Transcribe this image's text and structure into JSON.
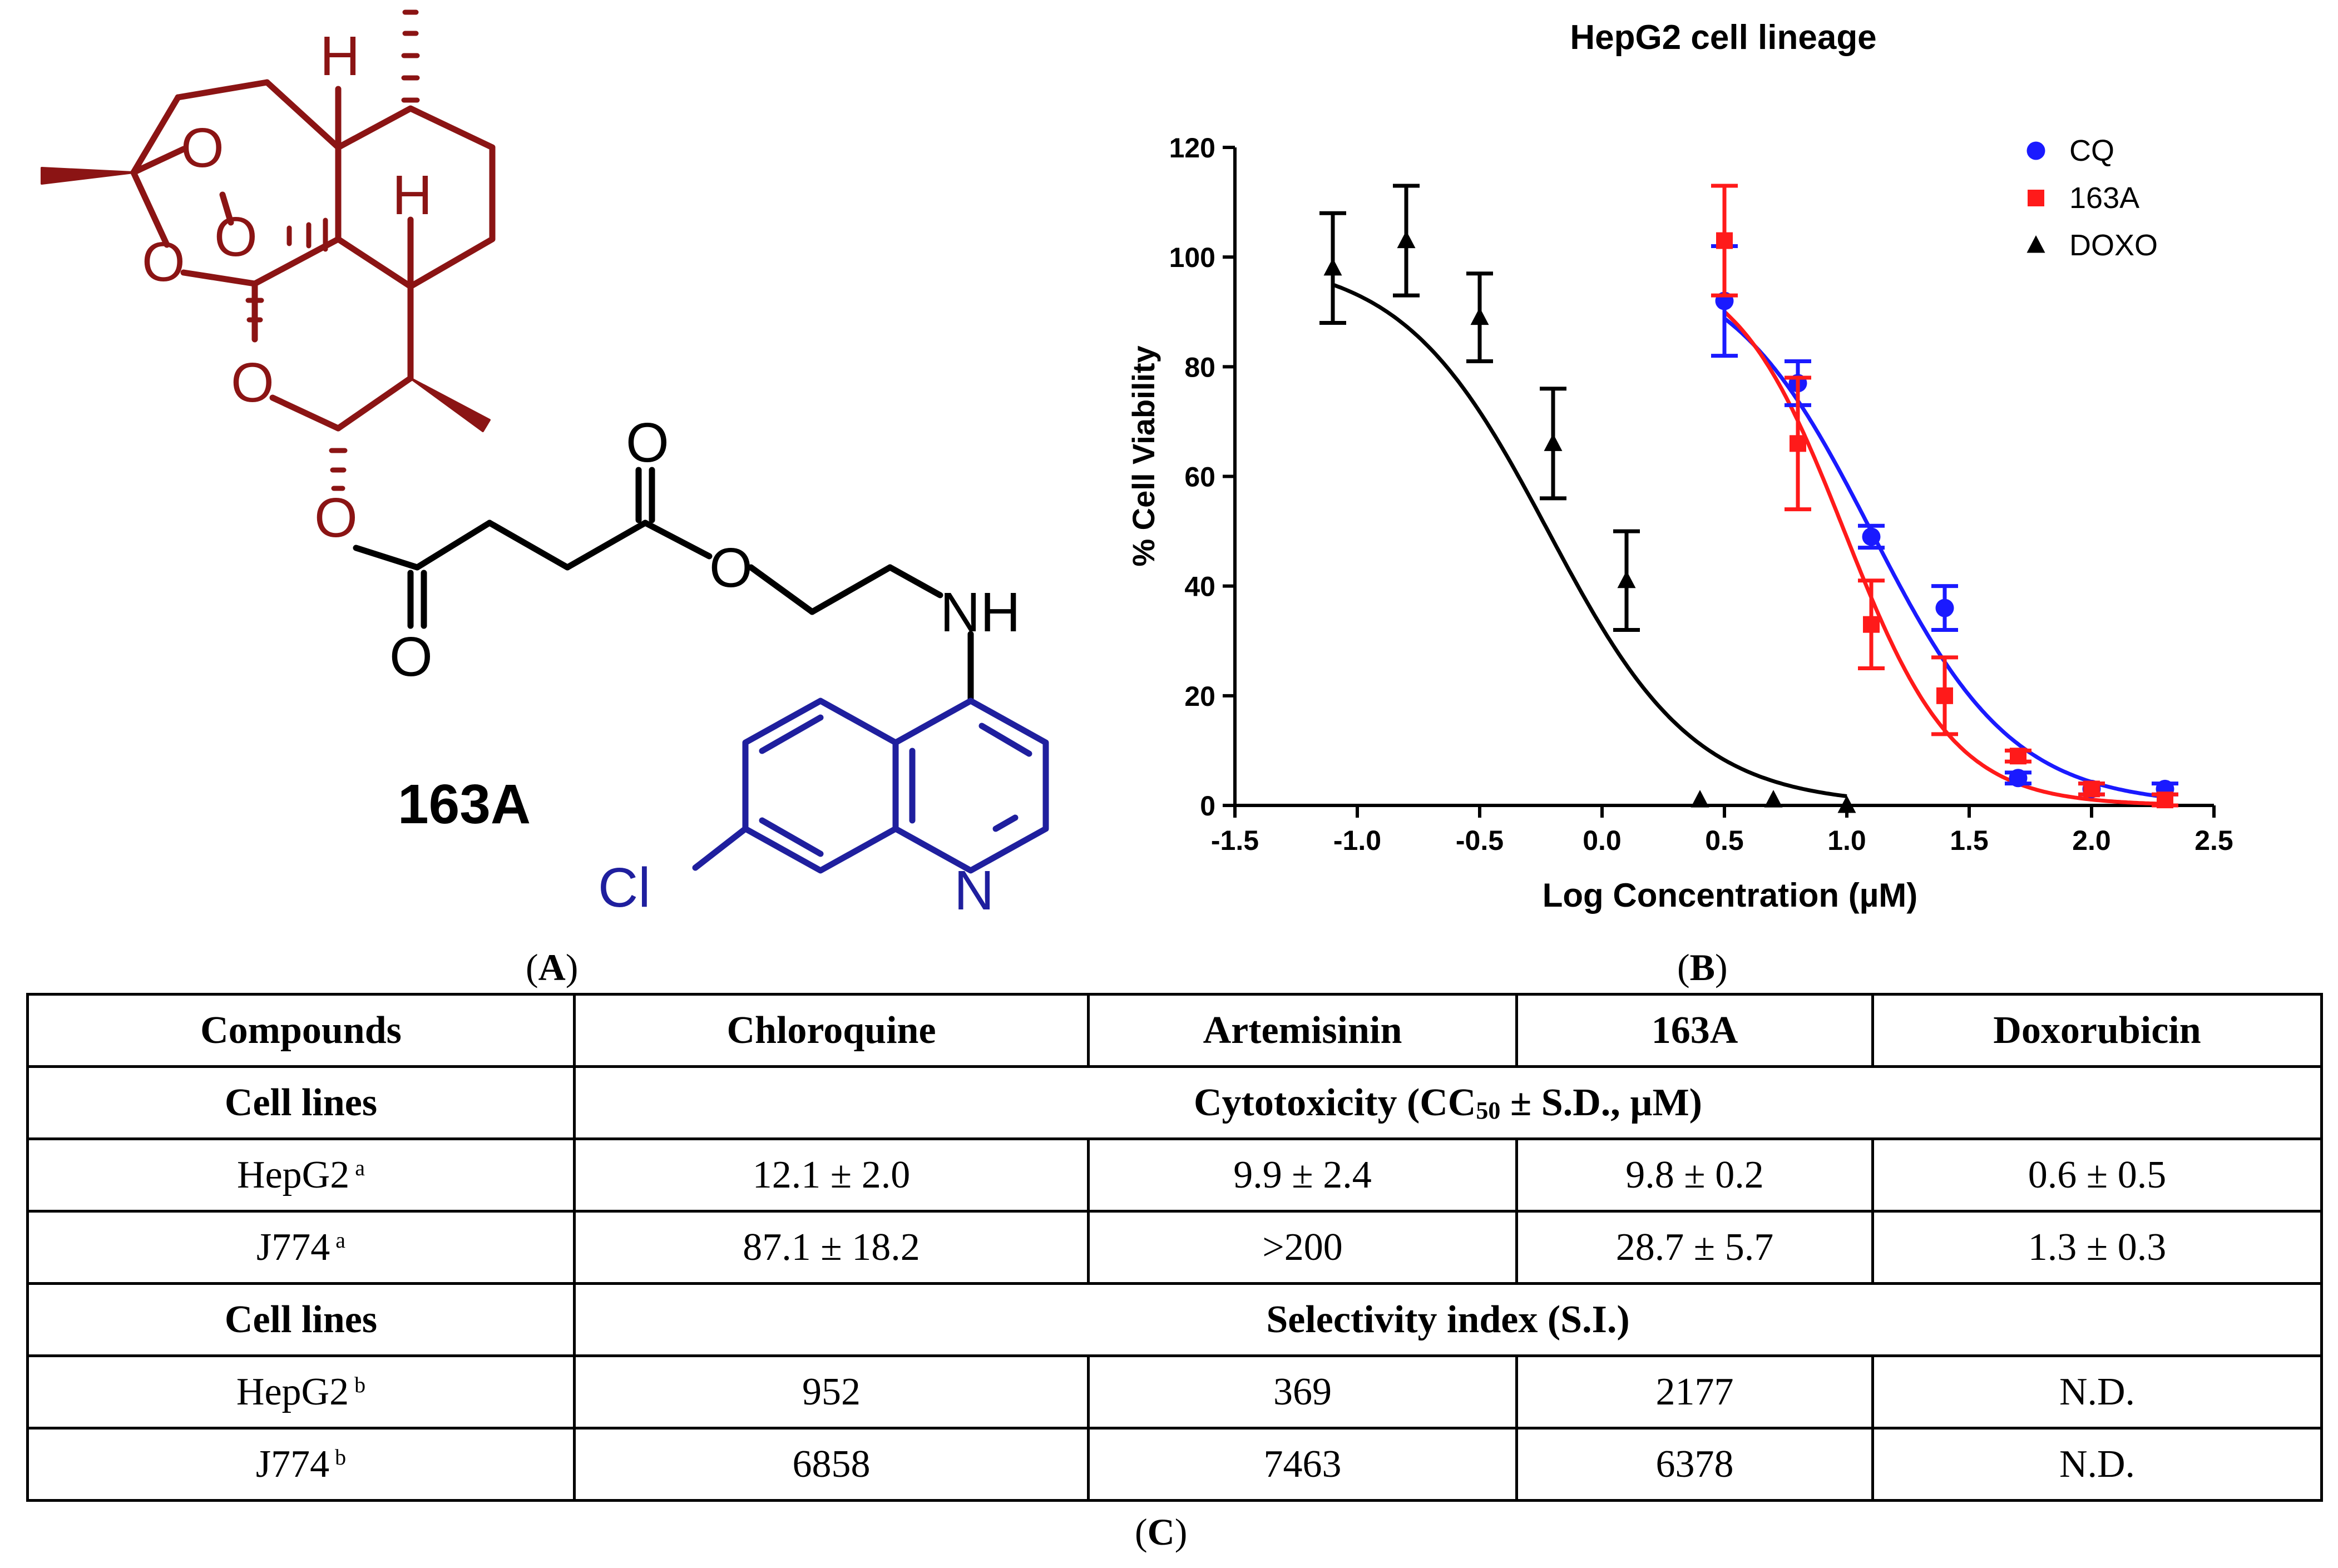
{
  "panelA": {
    "compound_label": "163A",
    "atoms": {
      "H_top": "H",
      "H_mid": "H",
      "O_p1": "O",
      "O_p2": "O",
      "O_left": "O",
      "O_ring": "O",
      "O_ester1": "O",
      "O_carbonyl1": "O",
      "O_carbonyl2": "O",
      "O_ester2": "O",
      "NH": "NH",
      "N": "N",
      "Cl": "Cl"
    },
    "colors": {
      "artemisinin_core": "#8B1414",
      "linker": "#000000",
      "quinoline": "#1F1F9E"
    },
    "caption": {
      "open": "(",
      "letter": "A",
      "close": ")"
    }
  },
  "panelB": {
    "caption": {
      "open": "(",
      "letter": "B",
      "close": ")"
    }
  },
  "chart_data": {
    "type": "scatter",
    "title": "HepG2 cell lineage",
    "xlabel": "Log Concentration (µM)",
    "ylabel": "% Cell Viability",
    "xlim": [
      -1.5,
      2.5
    ],
    "ylim": [
      0,
      120
    ],
    "xticks": [
      -1.5,
      -1.0,
      -0.5,
      0.0,
      0.5,
      1.0,
      1.5,
      2.0,
      2.5
    ],
    "xtick_labels": [
      "-1.5",
      "-1.0",
      "-0.5",
      "0.0",
      "0.5",
      "1.0",
      "1.5",
      "2.0",
      "2.5"
    ],
    "yticks": [
      0,
      20,
      40,
      60,
      80,
      100,
      120
    ],
    "ytick_labels": [
      "0",
      "20",
      "40",
      "60",
      "80",
      "100",
      "120"
    ],
    "legend_position": "top-right",
    "series": [
      {
        "name": "CQ",
        "color": "#1a1aff",
        "marker": "circle",
        "x": [
          0.5,
          0.8,
          1.1,
          1.4,
          1.7,
          2.0,
          2.3
        ],
        "y": [
          92,
          77,
          49,
          36,
          5,
          3,
          3
        ],
        "err": [
          10,
          4,
          2,
          4,
          1,
          1,
          1
        ],
        "fit": {
          "top": 100,
          "bottom": 0,
          "logic50": 1.1,
          "hill": 1.5
        }
      },
      {
        "name": "163A",
        "color": "#ff1a1a",
        "marker": "square",
        "x": [
          0.5,
          0.8,
          1.1,
          1.4,
          1.7,
          2.0,
          2.3
        ],
        "y": [
          103,
          66,
          33,
          20,
          9,
          3,
          1
        ],
        "err": [
          10,
          12,
          8,
          7,
          1,
          1,
          1
        ],
        "fit": {
          "top": 100,
          "bottom": 0,
          "logic50": 0.99,
          "hill": 1.95
        }
      },
      {
        "name": "DOXO",
        "color": "#000000",
        "marker": "triangle",
        "x": [
          -1.1,
          -0.8,
          -0.5,
          -0.2,
          0.1,
          0.4,
          0.7,
          1.0
        ],
        "y": [
          98,
          103,
          89,
          66,
          41,
          1,
          1,
          0
        ],
        "err": [
          10,
          10,
          8,
          10,
          9,
          0,
          0,
          0
        ],
        "fit": {
          "top": 100,
          "bottom": 0,
          "logic50": -0.22,
          "hill": 1.45
        }
      }
    ]
  },
  "table": {
    "headers": [
      "Compounds",
      "Chloroquine",
      "Artemisinin",
      "163A",
      "Doxorubicin"
    ],
    "section1": {
      "label": "Cell lines",
      "title_pre": "Cytotoxicity (CC",
      "title_sub": "50",
      "title_post": " ± S.D., µM)"
    },
    "cytotoxicity_rows": [
      {
        "cell": "HepG2",
        "note": "a",
        "values": [
          "12.1 ± 2.0",
          "9.9 ± 2.4",
          "9.8 ± 0.2",
          "0.6 ± 0.5"
        ]
      },
      {
        "cell": "J774",
        "note": "a",
        "values": [
          "87.1 ± 18.2",
          ">200",
          "28.7 ± 5.7",
          "1.3 ± 0.3"
        ]
      }
    ],
    "section2": {
      "label": "Cell lines",
      "title": "Selectivity index (S.I.)"
    },
    "selectivity_rows": [
      {
        "cell": "HepG2",
        "note": "b",
        "values": [
          "952",
          "369",
          "2177",
          "N.D."
        ]
      },
      {
        "cell": "J774",
        "note": "b",
        "values": [
          "6858",
          "7463",
          "6378",
          "N.D."
        ]
      }
    ]
  },
  "panelC": {
    "caption": {
      "open": "(",
      "letter": "C",
      "close": ")"
    }
  }
}
